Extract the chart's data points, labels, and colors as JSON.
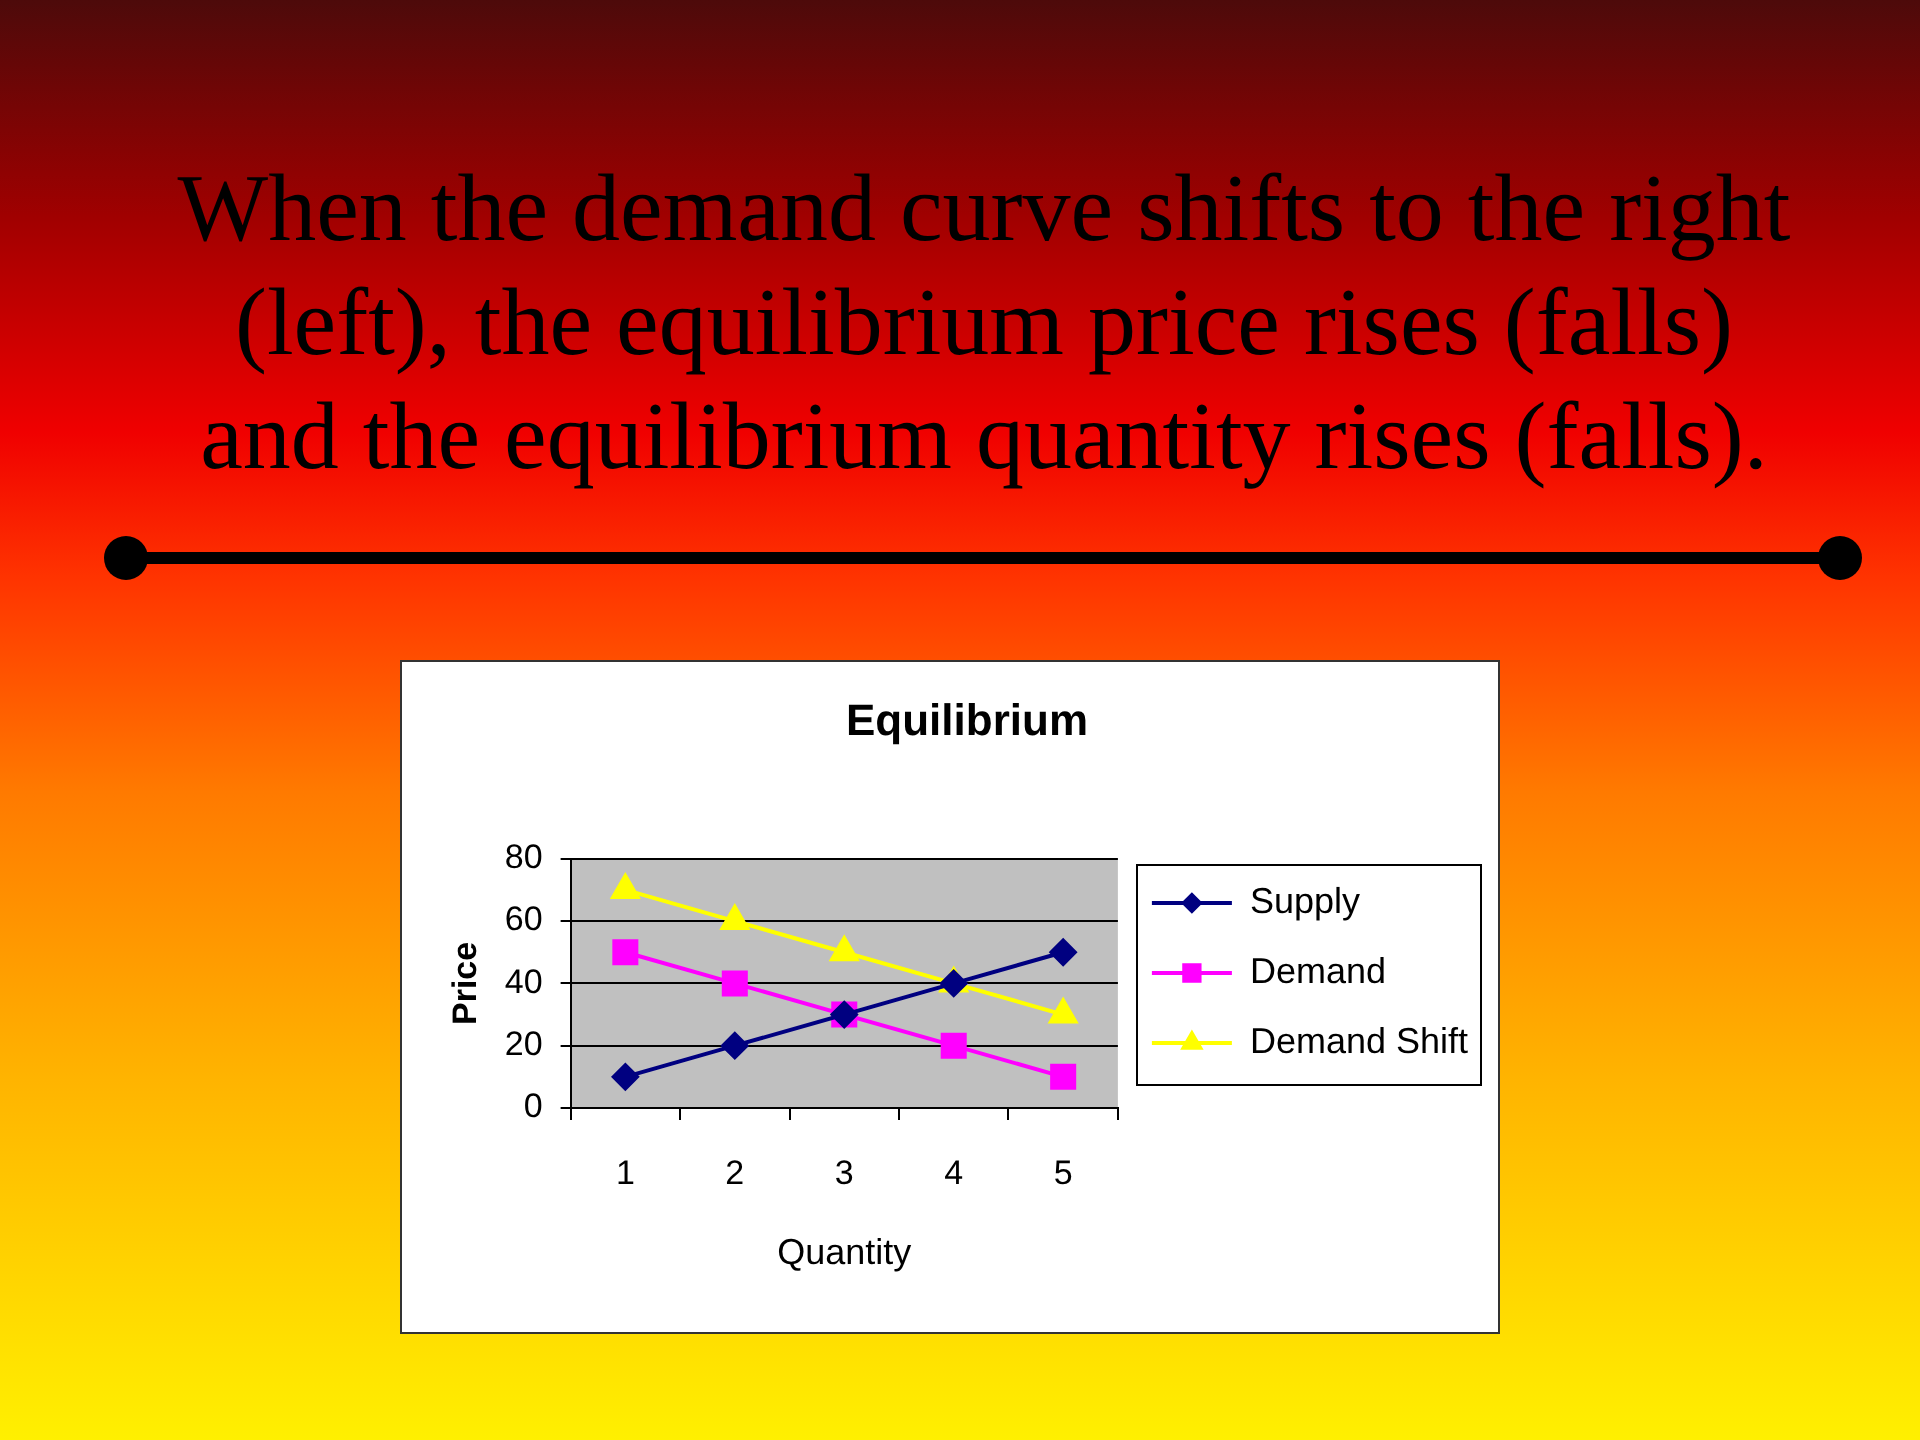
{
  "chart_data": {
    "type": "line",
    "title": "Equilibrium",
    "xlabel": "Quantity",
    "ylabel": "Price",
    "categories": [
      "1",
      "2",
      "3",
      "4",
      "5"
    ],
    "series": [
      {
        "name": "Supply",
        "color": "#000080",
        "values": [
          10,
          20,
          30,
          40,
          50
        ],
        "marker": "diamond"
      },
      {
        "name": "Demand",
        "color": "#ff00ff",
        "values": [
          50,
          40,
          30,
          20,
          10
        ],
        "marker": "square"
      },
      {
        "name": "Demand Shift",
        "color": "#ffff00",
        "values": [
          70,
          60,
          50,
          40,
          30
        ],
        "marker": "triangle"
      }
    ],
    "ylim": [
      0,
      80
    ],
    "yticks": [
      0,
      20,
      40,
      60,
      80
    ],
    "grid": "y",
    "legend": "right",
    "line_style": "solid",
    "annotations": [
      "When the demand curve shifts to the right (left), the equilibrium price rises (falls) and the equilibrium quantity rises (falls)."
    ]
  }
}
